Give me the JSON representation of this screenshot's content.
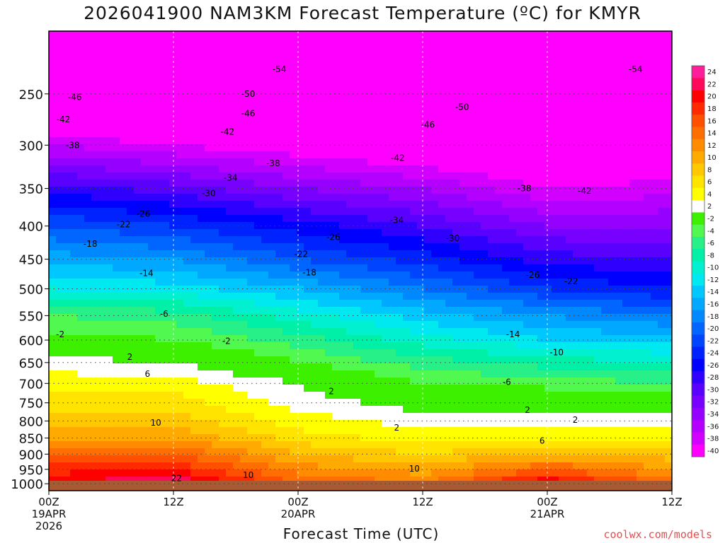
{
  "title": "2026041900 NAM3KM Forecast Temperature (ºC) for KMYR",
  "credit": "coolwx.com/models",
  "chart_data": {
    "type": "heatmap",
    "title": "2026041900 NAM3KM Forecast Temperature (ºC) for KMYR",
    "xlabel": "Forecast Time (UTC)",
    "ylabel": "",
    "x_ticks": [
      {
        "hour": 0,
        "lines": [
          "00Z",
          "19APR",
          "2026"
        ]
      },
      {
        "hour": 12,
        "lines": [
          "12Z"
        ]
      },
      {
        "hour": 24,
        "lines": [
          "00Z",
          "20APR"
        ]
      },
      {
        "hour": 36,
        "lines": [
          "12Z"
        ]
      },
      {
        "hour": 48,
        "lines": [
          "00Z",
          "21APR"
        ]
      },
      {
        "hour": 60,
        "lines": [
          "12Z"
        ]
      }
    ],
    "xlim": [
      0,
      60
    ],
    "y_ticks": [
      250,
      300,
      350,
      400,
      450,
      500,
      550,
      600,
      650,
      700,
      750,
      800,
      850,
      900,
      950,
      1000
    ],
    "ylim": [
      1025,
      200
    ],
    "y_scale": "log-pressure",
    "grid": true,
    "colorbar": {
      "labels": [
        24,
        22,
        20,
        18,
        16,
        14,
        12,
        10,
        8,
        6,
        4,
        2,
        -2,
        -4,
        -6,
        -8,
        -10,
        -12,
        -14,
        -16,
        -18,
        -20,
        -22,
        -24,
        -26,
        -28,
        -30,
        -32,
        -34,
        -36,
        -38,
        -40
      ],
      "colors": [
        "#ff1e9a",
        "#ff0a5a",
        "#ff0000",
        "#ff2a00",
        "#ff5000",
        "#ff6e00",
        "#ff8c00",
        "#ffaa00",
        "#ffc800",
        "#ffe400",
        "#ffff00",
        "#ffffff",
        "#3cf000",
        "#50f850",
        "#28f088",
        "#00f0a8",
        "#00f0d0",
        "#00e8f0",
        "#00c8ff",
        "#00a8ff",
        "#0088ff",
        "#0066ff",
        "#0044ff",
        "#0022ff",
        "#0000ff",
        "#3000ff",
        "#5a00ff",
        "#7800ff",
        "#9600ff",
        "#b400ff",
        "#d200ff",
        "#ff00ff"
      ]
    },
    "temperature_profile": [
      {
        "hour": 0,
        "levels": [
          {
            "p": 1000,
            "t": 22
          },
          {
            "p": 950,
            "t": 19
          },
          {
            "p": 900,
            "t": 15
          },
          {
            "p": 850,
            "t": 12
          },
          {
            "p": 800,
            "t": 9
          },
          {
            "p": 750,
            "t": 7
          },
          {
            "p": 700,
            "t": 5
          },
          {
            "p": 650,
            "t": 3
          },
          {
            "p": 600,
            "t": -1
          },
          {
            "p": 550,
            "t": -4
          },
          {
            "p": 500,
            "t": -10
          },
          {
            "p": 450,
            "t": -15
          },
          {
            "p": 400,
            "t": -20
          },
          {
            "p": 350,
            "t": -27
          },
          {
            "p": 300,
            "t": -36
          },
          {
            "p": 250,
            "t": -46
          },
          {
            "p": 200,
            "t": -55
          }
        ]
      },
      {
        "hour": 12,
        "levels": [
          {
            "p": 1000,
            "t": 24
          },
          {
            "p": 950,
            "t": 20
          },
          {
            "p": 900,
            "t": 16
          },
          {
            "p": 850,
            "t": 12
          },
          {
            "p": 800,
            "t": 9
          },
          {
            "p": 750,
            "t": 7
          },
          {
            "p": 700,
            "t": 5
          },
          {
            "p": 650,
            "t": 2
          },
          {
            "p": 600,
            "t": -2
          },
          {
            "p": 550,
            "t": -5
          },
          {
            "p": 500,
            "t": -11
          },
          {
            "p": 450,
            "t": -16
          },
          {
            "p": 400,
            "t": -22
          },
          {
            "p": 350,
            "t": -29
          },
          {
            "p": 300,
            "t": -38
          },
          {
            "p": 250,
            "t": -48
          },
          {
            "p": 200,
            "t": -56
          }
        ]
      },
      {
        "hour": 24,
        "levels": [
          {
            "p": 1000,
            "t": 16
          },
          {
            "p": 950,
            "t": 13
          },
          {
            "p": 900,
            "t": 10
          },
          {
            "p": 850,
            "t": 7
          },
          {
            "p": 800,
            "t": 5
          },
          {
            "p": 750,
            "t": 3
          },
          {
            "p": 700,
            "t": 2
          },
          {
            "p": 650,
            "t": -2
          },
          {
            "p": 600,
            "t": -5
          },
          {
            "p": 550,
            "t": -9
          },
          {
            "p": 500,
            "t": -14
          },
          {
            "p": 450,
            "t": -20
          },
          {
            "p": 400,
            "t": -25
          },
          {
            "p": 350,
            "t": -32
          },
          {
            "p": 300,
            "t": -40
          },
          {
            "p": 250,
            "t": -49
          },
          {
            "p": 200,
            "t": -56
          }
        ]
      },
      {
        "hour": 36,
        "levels": [
          {
            "p": 1000,
            "t": 14
          },
          {
            "p": 950,
            "t": 11
          },
          {
            "p": 900,
            "t": 8
          },
          {
            "p": 850,
            "t": 5
          },
          {
            "p": 800,
            "t": 3
          },
          {
            "p": 750,
            "t": 1
          },
          {
            "p": 700,
            "t": -2
          },
          {
            "p": 650,
            "t": -5
          },
          {
            "p": 600,
            "t": -9
          },
          {
            "p": 550,
            "t": -13
          },
          {
            "p": 500,
            "t": -18
          },
          {
            "p": 450,
            "t": -23
          },
          {
            "p": 400,
            "t": -28
          },
          {
            "p": 350,
            "t": -34
          },
          {
            "p": 300,
            "t": -42
          },
          {
            "p": 250,
            "t": -50
          },
          {
            "p": 200,
            "t": -57
          }
        ]
      },
      {
        "hour": 48,
        "levels": [
          {
            "p": 1000,
            "t": 22
          },
          {
            "p": 950,
            "t": 16
          },
          {
            "p": 900,
            "t": 10
          },
          {
            "p": 850,
            "t": 6
          },
          {
            "p": 800,
            "t": 3
          },
          {
            "p": 750,
            "t": 1
          },
          {
            "p": 700,
            "t": -3
          },
          {
            "p": 650,
            "t": -7
          },
          {
            "p": 600,
            "t": -12
          },
          {
            "p": 550,
            "t": -16
          },
          {
            "p": 500,
            "t": -22
          },
          {
            "p": 450,
            "t": -27
          },
          {
            "p": 400,
            "t": -32
          },
          {
            "p": 350,
            "t": -38
          },
          {
            "p": 300,
            "t": -44
          },
          {
            "p": 250,
            "t": -51
          },
          {
            "p": 200,
            "t": -57
          }
        ]
      },
      {
        "hour": 60,
        "levels": [
          {
            "p": 1000,
            "t": 15
          },
          {
            "p": 950,
            "t": 12
          },
          {
            "p": 900,
            "t": 9
          },
          {
            "p": 850,
            "t": 6
          },
          {
            "p": 800,
            "t": 3
          },
          {
            "p": 750,
            "t": 0
          },
          {
            "p": 700,
            "t": -4
          },
          {
            "p": 650,
            "t": -8
          },
          {
            "p": 600,
            "t": -13
          },
          {
            "p": 550,
            "t": -18
          },
          {
            "p": 500,
            "t": -24
          },
          {
            "p": 450,
            "t": -28
          },
          {
            "p": 400,
            "t": -32
          },
          {
            "p": 350,
            "t": -37
          },
          {
            "p": 300,
            "t": -42
          },
          {
            "p": 250,
            "t": -49
          },
          {
            "p": 200,
            "t": -55
          }
        ]
      }
    ],
    "contour_labels": [
      {
        "text": "-54",
        "hour": 22.2,
        "p": 229
      },
      {
        "text": "-54",
        "hour": 56.5,
        "p": 229
      },
      {
        "text": "-50",
        "hour": 19.2,
        "p": 250
      },
      {
        "text": "-50",
        "hour": 39.8,
        "p": 262
      },
      {
        "text": "-46",
        "hour": 2.5,
        "p": 253
      },
      {
        "text": "-46",
        "hour": 19.2,
        "p": 268
      },
      {
        "text": "-46",
        "hour": 36.5,
        "p": 279
      },
      {
        "text": "-42",
        "hour": 1.4,
        "p": 274
      },
      {
        "text": "-42",
        "hour": 17.2,
        "p": 286
      },
      {
        "text": "-42",
        "hour": 33.6,
        "p": 314
      },
      {
        "text": "-42",
        "hour": 51.6,
        "p": 353
      },
      {
        "text": "-38",
        "hour": 2.3,
        "p": 300
      },
      {
        "text": "-38",
        "hour": 21.6,
        "p": 320
      },
      {
        "text": "-38",
        "hour": 45.8,
        "p": 350
      },
      {
        "text": "-34",
        "hour": 17.5,
        "p": 337
      },
      {
        "text": "-34",
        "hour": 33.5,
        "p": 392
      },
      {
        "text": "-30",
        "hour": 15.4,
        "p": 356
      },
      {
        "text": "-30",
        "hour": 38.9,
        "p": 418
      },
      {
        "text": "-26",
        "hour": 9.1,
        "p": 383
      },
      {
        "text": "-26",
        "hour": 27.4,
        "p": 416
      },
      {
        "text": "-26",
        "hour": 46.6,
        "p": 476
      },
      {
        "text": "-22",
        "hour": 7.2,
        "p": 398
      },
      {
        "text": "-22",
        "hour": 24.3,
        "p": 442
      },
      {
        "text": "-22",
        "hour": 50.3,
        "p": 487
      },
      {
        "text": "-18",
        "hour": 4.0,
        "p": 426
      },
      {
        "text": "-18",
        "hour": 25.1,
        "p": 472
      },
      {
        "text": "-14",
        "hour": 9.4,
        "p": 473
      },
      {
        "text": "-14",
        "hour": 44.7,
        "p": 588
      },
      {
        "text": "-10",
        "hour": 48.9,
        "p": 627
      },
      {
        "text": "-6",
        "hour": 11.1,
        "p": 547
      },
      {
        "text": "-6",
        "hour": 44.1,
        "p": 697
      },
      {
        "text": "-2",
        "hour": 1.1,
        "p": 588
      },
      {
        "text": "-2",
        "hour": 17.1,
        "p": 602
      },
      {
        "text": "2",
        "hour": 7.8,
        "p": 637
      },
      {
        "text": "2",
        "hour": 27.2,
        "p": 720
      },
      {
        "text": "2",
        "hour": 33.5,
        "p": 820
      },
      {
        "text": "2",
        "hour": 46.1,
        "p": 770
      },
      {
        "text": "2",
        "hour": 50.7,
        "p": 797
      },
      {
        "text": "6",
        "hour": 9.5,
        "p": 677
      },
      {
        "text": "6",
        "hour": 47.5,
        "p": 859
      },
      {
        "text": "10",
        "hour": 10.3,
        "p": 805
      },
      {
        "text": "10",
        "hour": 19.2,
        "p": 970
      },
      {
        "text": "10",
        "hour": 35.2,
        "p": 948
      },
      {
        "text": "22",
        "hour": 12.3,
        "p": 981
      }
    ]
  }
}
